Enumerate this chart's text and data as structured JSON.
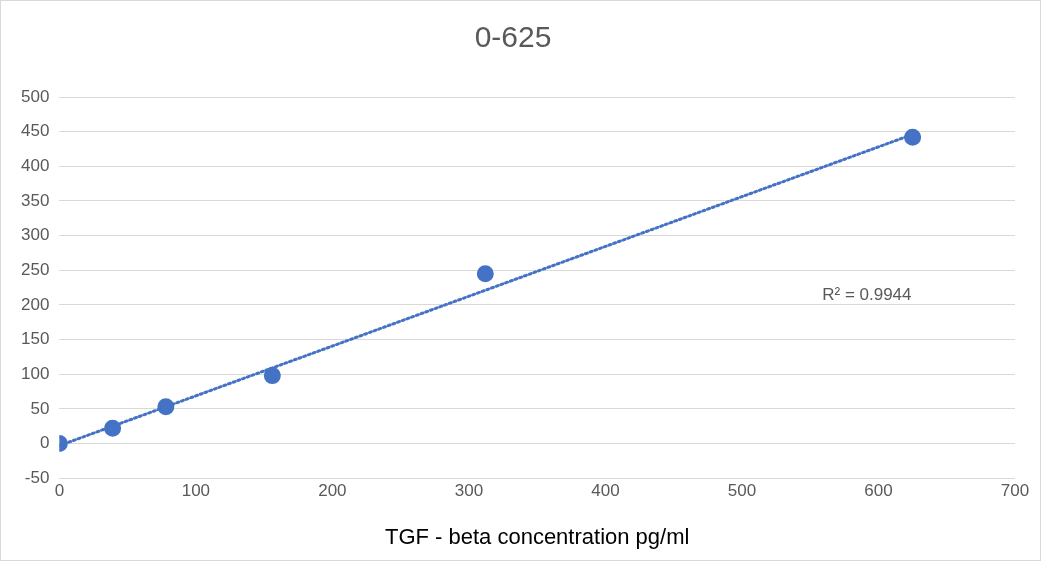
{
  "chart_data": {
    "type": "scatter",
    "title": "0-625",
    "xlabel": "TGF - beta concentration pg/ml",
    "series": [
      {
        "type": "scatter",
        "color": "#4472c4",
        "marker": "circle",
        "x": [
          0,
          39,
          78,
          156,
          312,
          625
        ],
        "values": [
          0,
          22,
          53,
          98,
          245,
          442
        ]
      },
      {
        "type": "line",
        "color": "#4472c4",
        "marker": "none",
        "line_style": "dotted",
        "x": [
          0,
          625
        ],
        "values": [
          -3,
          446
        ]
      }
    ],
    "annotations": [
      "R² = 0.9944"
    ],
    "xlim": [
      0,
      700
    ],
    "xticks": [
      0,
      100,
      200,
      300,
      400,
      500,
      600,
      700
    ],
    "ylim": [
      -50,
      500
    ],
    "yticks": [
      -50,
      0,
      50,
      100,
      150,
      200,
      250,
      300,
      350,
      400,
      450,
      500
    ],
    "grid": "y",
    "legend": false
  }
}
